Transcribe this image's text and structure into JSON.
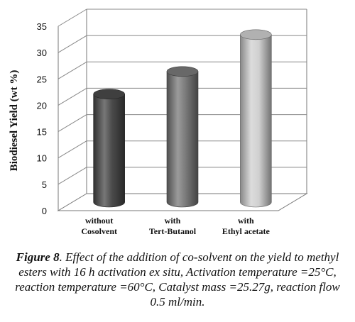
{
  "chart_data": {
    "type": "bar",
    "categories": [
      [
        "without",
        "Cosolvent"
      ],
      [
        "with",
        "Tert-Butanol"
      ],
      [
        "with",
        "Ethyl acetate"
      ]
    ],
    "values": [
      20.5,
      24.8,
      31.8
    ],
    "bar_colors": [
      "#4a4a4a",
      "#7a7a7a",
      "#d0d0d0"
    ],
    "ylabel": "Biodiesel Yield (wt %)",
    "ylim": [
      0,
      35
    ],
    "yticks": [
      0,
      5,
      10,
      15,
      20,
      25,
      30,
      35
    ],
    "grid": true
  },
  "caption": {
    "label": "Figure 8",
    "text": ". Effect of the addition of co-solvent on the yield to methyl esters with 16 h activation ex situ, Activation temperature =25°C, reaction temperature =60°C, Catalyst mass =25.27g, reaction flow 0.5 ml/min."
  }
}
